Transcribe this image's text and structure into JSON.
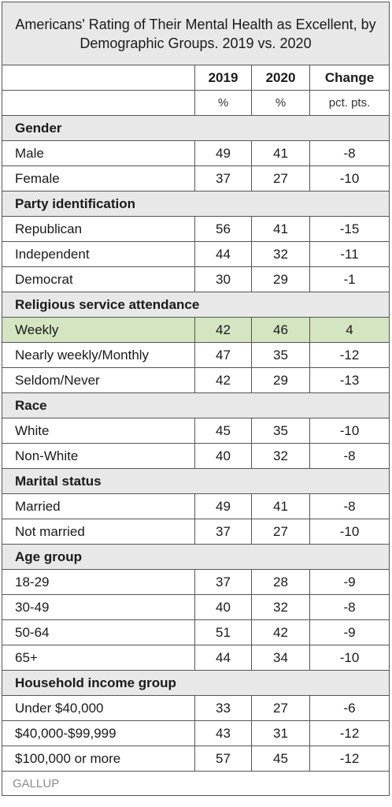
{
  "chart_data": {
    "type": "table",
    "title": "Americans' Rating of Their Mental Health as Excellent, by Demographic Groups. 2019 vs. 2020",
    "columns": [
      "",
      "2019",
      "2020",
      "Change"
    ],
    "units": [
      "",
      "%",
      "%",
      "pct. pts."
    ],
    "groups": [
      {
        "name": "Gender",
        "rows": [
          {
            "label": "Male",
            "y2019": "49",
            "y2020": "41",
            "change": "-8"
          },
          {
            "label": "Female",
            "y2019": "37",
            "y2020": "27",
            "change": "-10"
          }
        ]
      },
      {
        "name": "Party identification",
        "rows": [
          {
            "label": "Republican",
            "y2019": "56",
            "y2020": "41",
            "change": "-15"
          },
          {
            "label": "Independent",
            "y2019": "44",
            "y2020": "32",
            "change": "-11"
          },
          {
            "label": "Democrat",
            "y2019": "30",
            "y2020": "29",
            "change": "-1"
          }
        ]
      },
      {
        "name": "Religious service attendance",
        "rows": [
          {
            "label": "Weekly",
            "y2019": "42",
            "y2020": "46",
            "change": "4",
            "highlight": true
          },
          {
            "label": "Nearly weekly/Monthly",
            "y2019": "47",
            "y2020": "35",
            "change": "-12"
          },
          {
            "label": "Seldom/Never",
            "y2019": "42",
            "y2020": "29",
            "change": "-13"
          }
        ]
      },
      {
        "name": "Race",
        "rows": [
          {
            "label": "White",
            "y2019": "45",
            "y2020": "35",
            "change": "-10"
          },
          {
            "label": "Non-White",
            "y2019": "40",
            "y2020": "32",
            "change": "-8"
          }
        ]
      },
      {
        "name": "Marital status",
        "rows": [
          {
            "label": "Married",
            "y2019": "49",
            "y2020": "41",
            "change": "-8"
          },
          {
            "label": "Not married",
            "y2019": "37",
            "y2020": "27",
            "change": "-10"
          }
        ]
      },
      {
        "name": "Age group",
        "rows": [
          {
            "label": "18-29",
            "y2019": "37",
            "y2020": "28",
            "change": "-9"
          },
          {
            "label": "30-49",
            "y2019": "40",
            "y2020": "32",
            "change": "-8"
          },
          {
            "label": "50-64",
            "y2019": "51",
            "y2020": "42",
            "change": "-9"
          },
          {
            "label": "65+",
            "y2019": "44",
            "y2020": "34",
            "change": "-10"
          }
        ]
      },
      {
        "name": "Household income group",
        "rows": [
          {
            "label": "Under $40,000",
            "y2019": "33",
            "y2020": "27",
            "change": "-6"
          },
          {
            "label": "$40,000-$99,999",
            "y2019": "43",
            "y2020": "31",
            "change": "-12"
          },
          {
            "label": "$100,000 or more",
            "y2019": "57",
            "y2020": "45",
            "change": "-12"
          }
        ]
      }
    ],
    "source": "GALLUP",
    "colors": {
      "header_bg": "#e8e8e8",
      "highlight_bg": "#d3e5c1",
      "border": "#555555",
      "source_text": "#8a8a8a"
    }
  }
}
